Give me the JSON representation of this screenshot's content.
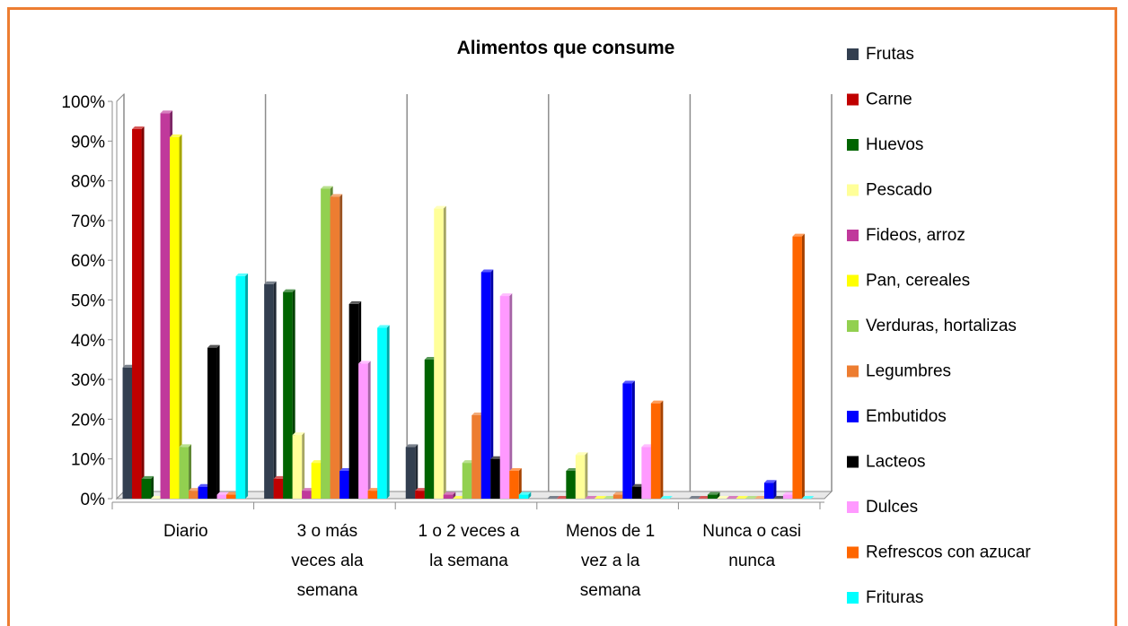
{
  "chart_data": {
    "type": "bar",
    "title": "Alimentos que consume",
    "categories": [
      "Diario",
      "3 o más veces ala semana",
      "1 o 2 veces a la semana",
      "Menos de 1 vez a la semana",
      "Nunca o casi nunca"
    ],
    "category_label_lines": [
      [
        "Diario"
      ],
      [
        "3 o más",
        "veces ala",
        "semana"
      ],
      [
        "1 o 2 veces a",
        "la semana"
      ],
      [
        "Menos de 1",
        "vez a la",
        "semana"
      ],
      [
        "Nunca o casi",
        "nunca"
      ]
    ],
    "yticks": [
      "0%",
      "10%",
      "20%",
      "30%",
      "40%",
      "50%",
      "60%",
      "70%",
      "80%",
      "90%",
      "100%"
    ],
    "ylim": [
      0,
      100
    ],
    "grid": "vertical category dividers",
    "legend_position": "right",
    "series": [
      {
        "name": "Frutas",
        "color": "#333F50",
        "values": [
          33,
          54,
          13,
          0,
          0
        ]
      },
      {
        "name": "Carne",
        "color": "#C00000",
        "values": [
          93,
          5,
          2,
          0,
          0
        ]
      },
      {
        "name": "Huevos",
        "color": "#006400",
        "values": [
          5,
          52,
          35,
          7,
          1
        ]
      },
      {
        "name": "Pescado",
        "color": "#FFFF99",
        "values": [
          0,
          16,
          73,
          11,
          0
        ]
      },
      {
        "name": "Fideos, arroz",
        "color": "#C0399B",
        "values": [
          97,
          2,
          1,
          0,
          0
        ]
      },
      {
        "name": "Pan, cereales",
        "color": "#FFFF00",
        "values": [
          91,
          9,
          0,
          0,
          0
        ]
      },
      {
        "name": "Verduras, hortalizas",
        "color": "#92D050",
        "values": [
          13,
          78,
          9,
          0,
          0
        ]
      },
      {
        "name": "Legumbres",
        "color": "#ED7D31",
        "values": [
          2,
          76,
          21,
          1,
          0
        ]
      },
      {
        "name": "Embutidos",
        "color": "#0000FF",
        "values": [
          3,
          7,
          57,
          29,
          4
        ]
      },
      {
        "name": "Lacteos",
        "color": "#000000",
        "values": [
          38,
          49,
          10,
          3,
          0
        ]
      },
      {
        "name": "Dulces",
        "color": "#FF99FF",
        "values": [
          1,
          34,
          51,
          13,
          1
        ]
      },
      {
        "name": "Refrescos con azucar",
        "color": "#FF6600",
        "values": [
          1,
          2,
          7,
          24,
          66
        ]
      },
      {
        "name": "Frituras",
        "color": "#00FFFF",
        "values": [
          56,
          43,
          1,
          0,
          0
        ]
      }
    ]
  }
}
